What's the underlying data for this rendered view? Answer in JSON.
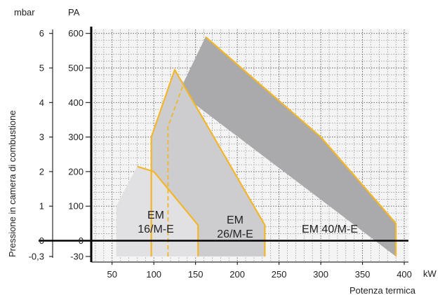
{
  "chart_data": {
    "type": "area",
    "title": "",
    "xlabel": "Potenza termica",
    "x_unit": "kW",
    "ylabel": "Pressione in camera di combustione",
    "y_unit_left": "mbar",
    "y_unit_right": "PA",
    "xlim": [
      25,
      405
    ],
    "ylim": [
      -30,
      620
    ],
    "grid": true,
    "x_ticks": [
      "50",
      "100",
      "150",
      "200",
      "250",
      "300",
      "350",
      "400"
    ],
    "y_ticks_pa": [
      "600",
      "500",
      "400",
      "300",
      "200",
      "100",
      "0",
      "-30"
    ],
    "y_ticks_mbar": [
      "6",
      "5",
      "4",
      "3",
      "2",
      "1",
      "0",
      "-0,3"
    ],
    "colors": {
      "em16_fill": "#e1e1e3",
      "em26_fill": "#cdcdd0",
      "em40_fill": "#aaaaad",
      "working_curve": "#f2b62a",
      "grid_major": "#555555",
      "grid_minor": "#8a8a8a",
      "plot_bg": "#f4f4f4"
    },
    "series": [
      {
        "name": "EM 40/M-E",
        "label_lines": [
          "EM 40/M-E"
        ],
        "x": [
          130,
          162,
          300,
          390,
          390
        ],
        "y": [
          430,
          590,
          300,
          50,
          -30
        ]
      },
      {
        "name": "EM 26/M-E",
        "label_lines": [
          "EM",
          "26/M-E"
        ],
        "x": [
          97,
          97,
          125,
          233,
          233
        ],
        "y": [
          -30,
          300,
          495,
          45,
          -30
        ]
      },
      {
        "name": "EM 16/M-E",
        "label_lines": [
          "EM",
          "16/M-E"
        ],
        "x": [
          55,
          55,
          80,
          100,
          153,
          153
        ],
        "y": [
          -30,
          100,
          215,
          200,
          45,
          -30
        ]
      }
    ],
    "reference_lines_x": [
      97,
      117
    ]
  }
}
